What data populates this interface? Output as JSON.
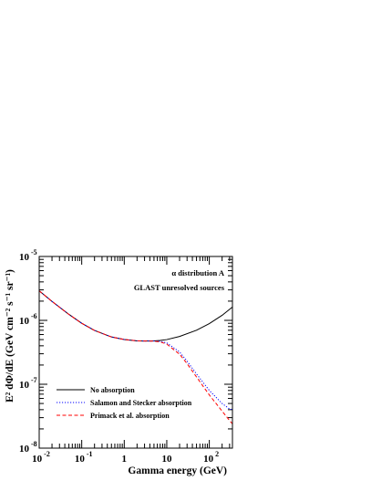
{
  "chart_data": {
    "type": "line",
    "xlabel": "Gamma energy (GeV)",
    "ylabel": "E² dΦ/dE (GeV cm⁻² s⁻¹ sr⁻¹)",
    "x_scale": "log",
    "y_scale": "log",
    "xlim": [
      0.01,
      350
    ],
    "ylim": [
      1e-08,
      1e-05
    ],
    "annotations": [
      "α distribution A",
      "GLAST unresolved sources"
    ],
    "x_ticks": [
      {
        "base": "10",
        "exp": "-2"
      },
      {
        "base": "10",
        "exp": "-1"
      },
      {
        "base": "1",
        "exp": ""
      },
      {
        "base": "10",
        "exp": ""
      },
      {
        "base": "10",
        "exp": "2"
      }
    ],
    "y_ticks": [
      {
        "base": "10",
        "exp": "-5"
      },
      {
        "base": "10",
        "exp": "-6"
      },
      {
        "base": "10",
        "exp": "-7"
      },
      {
        "base": "10",
        "exp": "-8"
      }
    ],
    "x_major_values": [
      0.01,
      0.1,
      1,
      10,
      100
    ],
    "y_major_values": [
      1e-05,
      1e-06,
      1e-07,
      1e-08
    ],
    "legend_position": "bottom-left",
    "series": [
      {
        "name": "No absorption",
        "color": "#000000",
        "style": "solid",
        "x": [
          0.01,
          0.02,
          0.05,
          0.1,
          0.2,
          0.5,
          1,
          2,
          3,
          5,
          7,
          10,
          20,
          50,
          100,
          200,
          350
        ],
        "y": [
          2.9e-06,
          1.98e-06,
          1.24e-06,
          9e-07,
          6.95e-07,
          5.5e-07,
          5.02e-07,
          4.78e-07,
          4.75e-07,
          4.78e-07,
          4.85e-07,
          5e-07,
          5.6e-07,
          7e-07,
          8.9e-07,
          1.2e-06,
          1.62e-06
        ]
      },
      {
        "name": "Salamon and Stecker absorption",
        "color": "#0000ff",
        "style": "dotted",
        "x": [
          0.01,
          0.02,
          0.05,
          0.1,
          0.2,
          0.5,
          1,
          2,
          3,
          5,
          7,
          10,
          20,
          30,
          50,
          100,
          200,
          300,
          350
        ],
        "y": [
          2.9e-06,
          1.98e-06,
          1.24e-06,
          9e-07,
          6.95e-07,
          5.5e-07,
          5.02e-07,
          4.78e-07,
          4.75e-07,
          4.76e-07,
          4.7e-07,
          4.45e-07,
          3.2e-07,
          2.3e-07,
          1.45e-07,
          8e-08,
          5e-08,
          4.1e-08,
          4e-08
        ]
      },
      {
        "name": "Primack et al. absorption",
        "color": "#ff0000",
        "style": "dashed",
        "x": [
          0.01,
          0.02,
          0.05,
          0.1,
          0.2,
          0.5,
          1,
          2,
          3,
          5,
          7,
          10,
          20,
          30,
          50,
          100,
          200,
          300,
          350
        ],
        "y": [
          2.9e-06,
          1.98e-06,
          1.24e-06,
          9e-07,
          6.95e-07,
          5.5e-07,
          5.02e-07,
          4.78e-07,
          4.75e-07,
          4.72e-07,
          4.6e-07,
          4.25e-07,
          2.95e-07,
          2.1e-07,
          1.3e-07,
          6.8e-08,
          3.8e-08,
          2.7e-08,
          2.4e-08
        ]
      }
    ]
  }
}
